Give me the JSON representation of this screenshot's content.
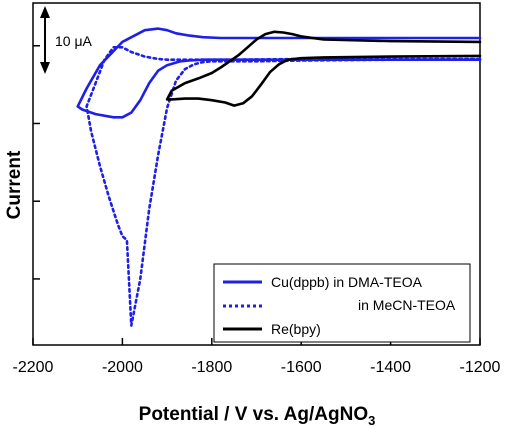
{
  "chart_data": {
    "type": "line",
    "title": "",
    "xlabel": "Potential / V vs. Ag/AgNO",
    "xlabel_subscript": "3",
    "ylabel": "Current",
    "xlim": [
      -2200,
      -1200
    ],
    "x_ticks": [
      -2200,
      -2000,
      -1800,
      -1600,
      -1400,
      -1200
    ],
    "y_ticks": [
      1,
      0,
      -1,
      -2
    ],
    "ylim": [
      -2.85,
      1.55
    ],
    "y_tick_labels_shown": false,
    "grid": false,
    "scale_bar": {
      "label": "10 μA",
      "from": 1,
      "to": 2
    },
    "legend_position": "bottom-right",
    "series": [
      {
        "name": "Cu(dppb) in DMA-TEOA",
        "color": "#1f1fe6",
        "style": "solid",
        "x": [
          -1200,
          -1400,
          -1600,
          -1700,
          -1750,
          -1780,
          -1820,
          -1850,
          -1880,
          -1900,
          -1920,
          -1950,
          -2000,
          -2050,
          -2080,
          -2100,
          -2090,
          -2060,
          -2020,
          -2000,
          -1980,
          -1960,
          -1940,
          -1920,
          -1900,
          -1870,
          -1850,
          -1820,
          -1800,
          -1700,
          -1600,
          -1400,
          -1200
        ],
        "y": [
          1.1,
          1.1,
          1.1,
          1.1,
          1.1,
          1.1,
          1.11,
          1.13,
          1.16,
          1.2,
          1.22,
          1.2,
          1.05,
          0.75,
          0.45,
          0.22,
          0.18,
          0.12,
          0.08,
          0.08,
          0.14,
          0.3,
          0.52,
          0.68,
          0.75,
          0.8,
          0.81,
          0.82,
          0.82,
          0.82,
          0.82,
          0.82,
          0.82
        ]
      },
      {
        "name": "in MeCN-TEOA",
        "color": "#1f1fe6",
        "style": "dotted",
        "x": [
          -1200,
          -1400,
          -1600,
          -1750,
          -1850,
          -1900,
          -1920,
          -1950,
          -1980,
          -2000,
          -2020,
          -2040,
          -2060,
          -2080,
          -2070,
          -2050,
          -2030,
          -2010,
          -2000,
          -1990,
          -1980,
          -1960,
          -1940,
          -1920,
          -1900,
          -1880,
          -1860,
          -1840,
          -1820,
          -1800,
          -1700,
          -1600,
          -1400,
          -1200
        ],
        "y": [
          0.83,
          0.83,
          0.83,
          0.82,
          0.82,
          0.82,
          0.83,
          0.86,
          0.92,
          0.98,
          0.98,
          0.82,
          0.52,
          0.22,
          -0.1,
          -0.55,
          -0.95,
          -1.3,
          -1.45,
          -1.5,
          -2.6,
          -2.0,
          -1.1,
          -0.4,
          0.2,
          0.55,
          0.7,
          0.76,
          0.79,
          0.8,
          0.8,
          0.81,
          0.82,
          0.83
        ]
      },
      {
        "name": "Re(bpy)",
        "color": "#000000",
        "style": "solid",
        "x": [
          -1200,
          -1400,
          -1550,
          -1600,
          -1630,
          -1650,
          -1670,
          -1690,
          -1710,
          -1730,
          -1750,
          -1770,
          -1800,
          -1830,
          -1860,
          -1890,
          -1900,
          -1890,
          -1860,
          -1830,
          -1800,
          -1780,
          -1760,
          -1740,
          -1720,
          -1700,
          -1680,
          -1660,
          -1640,
          -1620,
          -1600,
          -1550,
          -1400,
          -1200
        ],
        "y": [
          0.87,
          0.86,
          0.85,
          0.84,
          0.82,
          0.76,
          0.66,
          0.5,
          0.35,
          0.26,
          0.23,
          0.27,
          0.3,
          0.32,
          0.32,
          0.31,
          0.31,
          0.42,
          0.52,
          0.58,
          0.65,
          0.72,
          0.8,
          0.88,
          0.98,
          1.08,
          1.15,
          1.18,
          1.17,
          1.15,
          1.12,
          1.08,
          1.06,
          1.05
        ]
      }
    ]
  }
}
